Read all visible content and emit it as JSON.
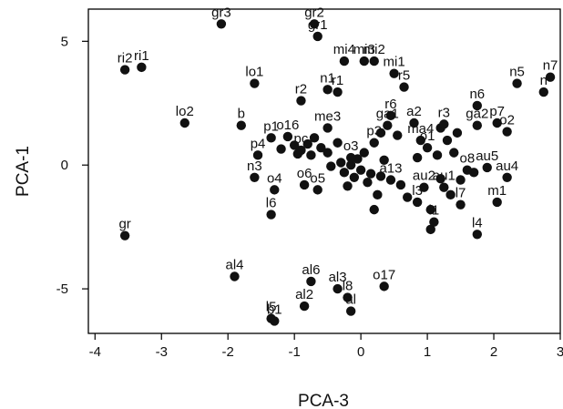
{
  "chart_data": {
    "type": "scatter",
    "title": "",
    "xlabel": "PCA-3",
    "ylabel": "PCA-1",
    "xlim": [
      -4.1,
      3.0
    ],
    "ylim": [
      -6.8,
      6.3
    ],
    "xticks": [
      -4,
      -3,
      -2,
      -1,
      0,
      1,
      2,
      3
    ],
    "yticks": [
      -5,
      0,
      5
    ],
    "grid": false,
    "legend": "none",
    "marker_color": "#111111",
    "points": [
      {
        "label": "gr3",
        "x": -2.1,
        "y": 5.7
      },
      {
        "label": "gr2",
        "x": -0.7,
        "y": 5.7
      },
      {
        "label": "gr1",
        "x": -0.65,
        "y": 5.2
      },
      {
        "label": "ri2",
        "x": -3.55,
        "y": 3.85
      },
      {
        "label": "ri1",
        "x": -3.3,
        "y": 3.95
      },
      {
        "label": "lo1",
        "x": -1.6,
        "y": 3.3
      },
      {
        "label": "lo2",
        "x": -2.65,
        "y": 1.7
      },
      {
        "label": "mi4",
        "x": -0.25,
        "y": 4.2
      },
      {
        "label": "mi3",
        "x": 0.05,
        "y": 4.2
      },
      {
        "label": "mi2",
        "x": 0.2,
        "y": 4.2
      },
      {
        "label": "mi1",
        "x": 0.5,
        "y": 3.7
      },
      {
        "label": "n5",
        "x": 2.35,
        "y": 3.3
      },
      {
        "label": "n7",
        "x": 2.85,
        "y": 3.55
      },
      {
        "label": "n",
        "x": 2.75,
        "y": 2.95
      },
      {
        "label": "r2",
        "x": -0.9,
        "y": 2.6
      },
      {
        "label": "n1",
        "x": -0.5,
        "y": 3.05
      },
      {
        "label": "r1",
        "x": -0.35,
        "y": 2.95
      },
      {
        "label": "r5",
        "x": 0.65,
        "y": 3.15
      },
      {
        "label": "n6",
        "x": 1.75,
        "y": 2.4
      },
      {
        "label": "r6",
        "x": 0.45,
        "y": 2.0
      },
      {
        "label": "b",
        "x": -1.8,
        "y": 1.6
      },
      {
        "label": "r3",
        "x": 1.25,
        "y": 1.65
      },
      {
        "label": "ga1",
        "x": 0.4,
        "y": 1.6
      },
      {
        "label": "a2",
        "x": 0.8,
        "y": 1.7
      },
      {
        "label": "ga2",
        "x": 1.75,
        "y": 1.6
      },
      {
        "label": "p7",
        "x": 2.05,
        "y": 1.7
      },
      {
        "label": "o2",
        "x": 2.2,
        "y": 1.35
      },
      {
        "label": "me3",
        "x": -0.5,
        "y": 1.5
      },
      {
        "label": "ma4",
        "x": 0.9,
        "y": 1.0
      },
      {
        "label": "p1",
        "x": -1.35,
        "y": 1.1
      },
      {
        "label": "o16",
        "x": -1.1,
        "y": 1.15
      },
      {
        "label": "p3",
        "x": 0.2,
        "y": 0.9
      },
      {
        "label": "pc",
        "x": -0.9,
        "y": 0.6
      },
      {
        "label": "p4",
        "x": -1.55,
        "y": 0.4
      },
      {
        "label": "o3",
        "x": -0.15,
        "y": 0.3
      },
      {
        "label": "o1",
        "x": 1.0,
        "y": 0.7
      },
      {
        "label": "o8",
        "x": 1.6,
        "y": -0.2
      },
      {
        "label": "au5",
        "x": 1.9,
        "y": -0.1
      },
      {
        "label": "n3",
        "x": -1.6,
        "y": -0.5
      },
      {
        "label": "o4",
        "x": -1.3,
        "y": -1.0
      },
      {
        "label": "o6",
        "x": -0.85,
        "y": -0.8
      },
      {
        "label": "o5",
        "x": -0.65,
        "y": -1.0
      },
      {
        "label": "a13",
        "x": 0.45,
        "y": -0.6
      },
      {
        "label": "au2",
        "x": 0.95,
        "y": -0.9
      },
      {
        "label": "au1",
        "x": 1.25,
        "y": -0.9
      },
      {
        "label": "au4",
        "x": 2.2,
        "y": -0.5
      },
      {
        "label": "m1",
        "x": 2.05,
        "y": -1.5
      },
      {
        "label": "l6",
        "x": -1.35,
        "y": -2.0
      },
      {
        "label": "l3",
        "x": 0.85,
        "y": -1.5
      },
      {
        "label": "l1",
        "x": 1.1,
        "y": -2.3
      },
      {
        "label": "l7",
        "x": 1.5,
        "y": -1.6
      },
      {
        "label": "l4",
        "x": 1.75,
        "y": -2.8
      },
      {
        "label": "gr",
        "x": -3.55,
        "y": -2.85
      },
      {
        "label": "al4",
        "x": -1.9,
        "y": -4.5
      },
      {
        "label": "al6",
        "x": -0.75,
        "y": -4.7
      },
      {
        "label": "al3",
        "x": -0.35,
        "y": -5.0
      },
      {
        "label": "l8",
        "x": -0.2,
        "y": -5.35
      },
      {
        "label": "al2",
        "x": -0.85,
        "y": -5.7
      },
      {
        "label": "al",
        "x": -0.15,
        "y": -5.9
      },
      {
        "label": "o17",
        "x": 0.35,
        "y": -4.9
      },
      {
        "label": "l5",
        "x": -1.35,
        "y": -6.2
      },
      {
        "label": "b1",
        "x": -1.3,
        "y": -6.3
      }
    ],
    "unlabeled_points": [
      {
        "x": -1.2,
        "y": 0.65
      },
      {
        "x": -1.0,
        "y": 0.8
      },
      {
        "x": -0.95,
        "y": 0.45
      },
      {
        "x": -0.8,
        "y": 0.85
      },
      {
        "x": -0.75,
        "y": 0.4
      },
      {
        "x": -0.7,
        "y": 1.1
      },
      {
        "x": -0.6,
        "y": 0.7
      },
      {
        "x": -0.5,
        "y": 0.5
      },
      {
        "x": -0.35,
        "y": 0.9
      },
      {
        "x": -0.3,
        "y": 0.1
      },
      {
        "x": -0.25,
        "y": -0.3
      },
      {
        "x": -0.2,
        "y": -0.85
      },
      {
        "x": -0.15,
        "y": 0.0
      },
      {
        "x": -0.1,
        "y": -0.5
      },
      {
        "x": -0.05,
        "y": 0.25
      },
      {
        "x": 0.0,
        "y": -0.2
      },
      {
        "x": 0.05,
        "y": 0.5
      },
      {
        "x": 0.1,
        "y": -0.7
      },
      {
        "x": 0.15,
        "y": -0.35
      },
      {
        "x": 0.2,
        "y": -1.8
      },
      {
        "x": 0.25,
        "y": -1.2
      },
      {
        "x": 0.3,
        "y": -0.45
      },
      {
        "x": 0.3,
        "y": 1.3
      },
      {
        "x": 0.35,
        "y": 0.2
      },
      {
        "x": 0.55,
        "y": 1.2
      },
      {
        "x": 0.6,
        "y": -0.8
      },
      {
        "x": 0.7,
        "y": -1.3
      },
      {
        "x": 0.85,
        "y": 0.3
      },
      {
        "x": 1.05,
        "y": -1.8
      },
      {
        "x": 1.05,
        "y": -2.6
      },
      {
        "x": 1.15,
        "y": 0.4
      },
      {
        "x": 1.2,
        "y": -0.55
      },
      {
        "x": 1.3,
        "y": 1.0
      },
      {
        "x": 1.35,
        "y": -1.2
      },
      {
        "x": 1.4,
        "y": 0.5
      },
      {
        "x": 1.45,
        "y": 1.3
      },
      {
        "x": 1.5,
        "y": -0.6
      },
      {
        "x": 1.7,
        "y": -0.3
      },
      {
        "x": 1.2,
        "y": 1.5
      },
      {
        "x": -0.45,
        "y": -0.05
      }
    ]
  }
}
